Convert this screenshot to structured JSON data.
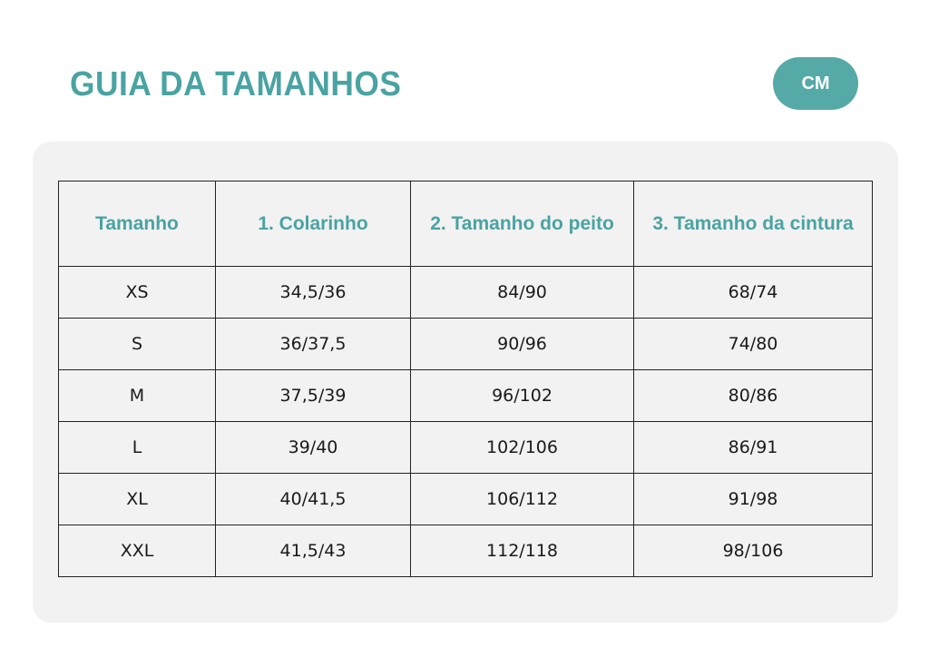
{
  "header": {
    "title": "GUIA DA TAMANHOS",
    "unit_label": "CM"
  },
  "colors": {
    "accent": "#4aa3a3",
    "unit_button_bg": "#55a9a6",
    "panel_bg": "#f2f2f2",
    "border": "#222222",
    "text": "#1a1a1a"
  },
  "table": {
    "headers": [
      "Tamanho",
      "1.  Colarinho",
      "2. Tamanho do peito",
      "3. Tamanho da cintura"
    ],
    "rows": [
      [
        "XS",
        "34,5/36",
        "84/90",
        "68/74"
      ],
      [
        "S",
        "36/37,5",
        "90/96",
        "74/80"
      ],
      [
        "M",
        "37,5/39",
        "96/102",
        "80/86"
      ],
      [
        "L",
        "39/40",
        "102/106",
        "86/91"
      ],
      [
        "XL",
        "40/41,5",
        "106/112",
        "91/98"
      ],
      [
        "XXL",
        "41,5/43",
        "112/118",
        "98/106"
      ]
    ]
  }
}
